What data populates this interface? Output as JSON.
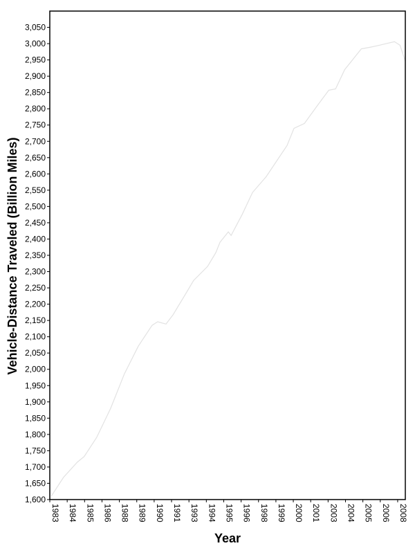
{
  "chart_data": {
    "type": "line",
    "x_label": "Year",
    "y_label": "Vehicle-Distance Traveled (Billion Miles)",
    "color": "#e2e2e2",
    "x": [
      1983.1,
      1983.98,
      1984.98,
      1985.47,
      1986.37,
      1987.37,
      1988.36,
      1989.36,
      1990.35,
      1990.75,
      1991.35,
      1991.85,
      1992.6,
      1993.34,
      1994.34,
      1994.93,
      1995.23,
      1995.83,
      1996.03,
      1996.82,
      1997.57,
      1998.56,
      1999.31,
      2000.05,
      2000.55,
      2001.3,
      2002.3,
      2003.05,
      2003.54,
      2004.19,
      2004.79,
      2005.39,
      2006.03,
      2006.68,
      2007.27,
      2007.77,
      2008.17,
      2008.55
    ],
    "values": [
      1610,
      1668,
      1715,
      1732,
      1791,
      1880,
      1986,
      2071,
      2135,
      2146,
      2139,
      2167,
      2220,
      2273,
      2316,
      2358,
      2390,
      2422,
      2411,
      2475,
      2543,
      2592,
      2640,
      2687,
      2740,
      2755,
      2814,
      2857,
      2861,
      2920,
      2952,
      2984,
      2989,
      2995,
      3001,
      3006,
      2995,
      2946
    ],
    "xlim": [
      1983,
      2008.55
    ],
    "xticks": [
      {
        "value": 1983,
        "label": "1983"
      },
      {
        "value": 1984.25,
        "label": "1984"
      },
      {
        "value": 1985.5,
        "label": "1985"
      },
      {
        "value": 1986.75,
        "label": "1986"
      },
      {
        "value": 1988,
        "label": "1988"
      },
      {
        "value": 1989.25,
        "label": "1989"
      },
      {
        "value": 1990.5,
        "label": "1990"
      },
      {
        "value": 1991.75,
        "label": "1991"
      },
      {
        "value": 1993,
        "label": "1993"
      },
      {
        "value": 1994.25,
        "label": "1994"
      },
      {
        "value": 1995.5,
        "label": "1995"
      },
      {
        "value": 1996.75,
        "label": "1996"
      },
      {
        "value": 1998,
        "label": "1998"
      },
      {
        "value": 1999.25,
        "label": "1999"
      },
      {
        "value": 2000.5,
        "label": "2000"
      },
      {
        "value": 2001.75,
        "label": "2001"
      },
      {
        "value": 2003,
        "label": "2003"
      },
      {
        "value": 2004.25,
        "label": "2004"
      },
      {
        "value": 2005.5,
        "label": "2005"
      },
      {
        "value": 2006.75,
        "label": "2006"
      },
      {
        "value": 2008,
        "label": "2008"
      }
    ],
    "ylim": [
      1600,
      3100
    ],
    "yticks": [
      {
        "value": 1600,
        "label": "1,600"
      },
      {
        "value": 1650,
        "label": "1,650"
      },
      {
        "value": 1700,
        "label": "1,700"
      },
      {
        "value": 1750,
        "label": "1,750"
      },
      {
        "value": 1800,
        "label": "1,800"
      },
      {
        "value": 1850,
        "label": "1,850"
      },
      {
        "value": 1900,
        "label": "1,900"
      },
      {
        "value": 1950,
        "label": "1,950"
      },
      {
        "value": 2000,
        "label": "2,000"
      },
      {
        "value": 2050,
        "label": "2,050"
      },
      {
        "value": 2100,
        "label": "2,100"
      },
      {
        "value": 2150,
        "label": "2,150"
      },
      {
        "value": 2200,
        "label": "2,200"
      },
      {
        "value": 2250,
        "label": "2,250"
      },
      {
        "value": 2300,
        "label": "2,300"
      },
      {
        "value": 2350,
        "label": "2,350"
      },
      {
        "value": 2400,
        "label": "2,400"
      },
      {
        "value": 2450,
        "label": "2,450"
      },
      {
        "value": 2500,
        "label": "2,500"
      },
      {
        "value": 2550,
        "label": "2,550"
      },
      {
        "value": 2600,
        "label": "2,600"
      },
      {
        "value": 2650,
        "label": "2,650"
      },
      {
        "value": 2700,
        "label": "2,700"
      },
      {
        "value": 2750,
        "label": "2,750"
      },
      {
        "value": 2800,
        "label": "2,800"
      },
      {
        "value": 2850,
        "label": "2,850"
      },
      {
        "value": 2900,
        "label": "2,900"
      },
      {
        "value": 2950,
        "label": "2,950"
      },
      {
        "value": 3000,
        "label": "3,000"
      },
      {
        "value": 3050,
        "label": "3,050"
      }
    ]
  }
}
